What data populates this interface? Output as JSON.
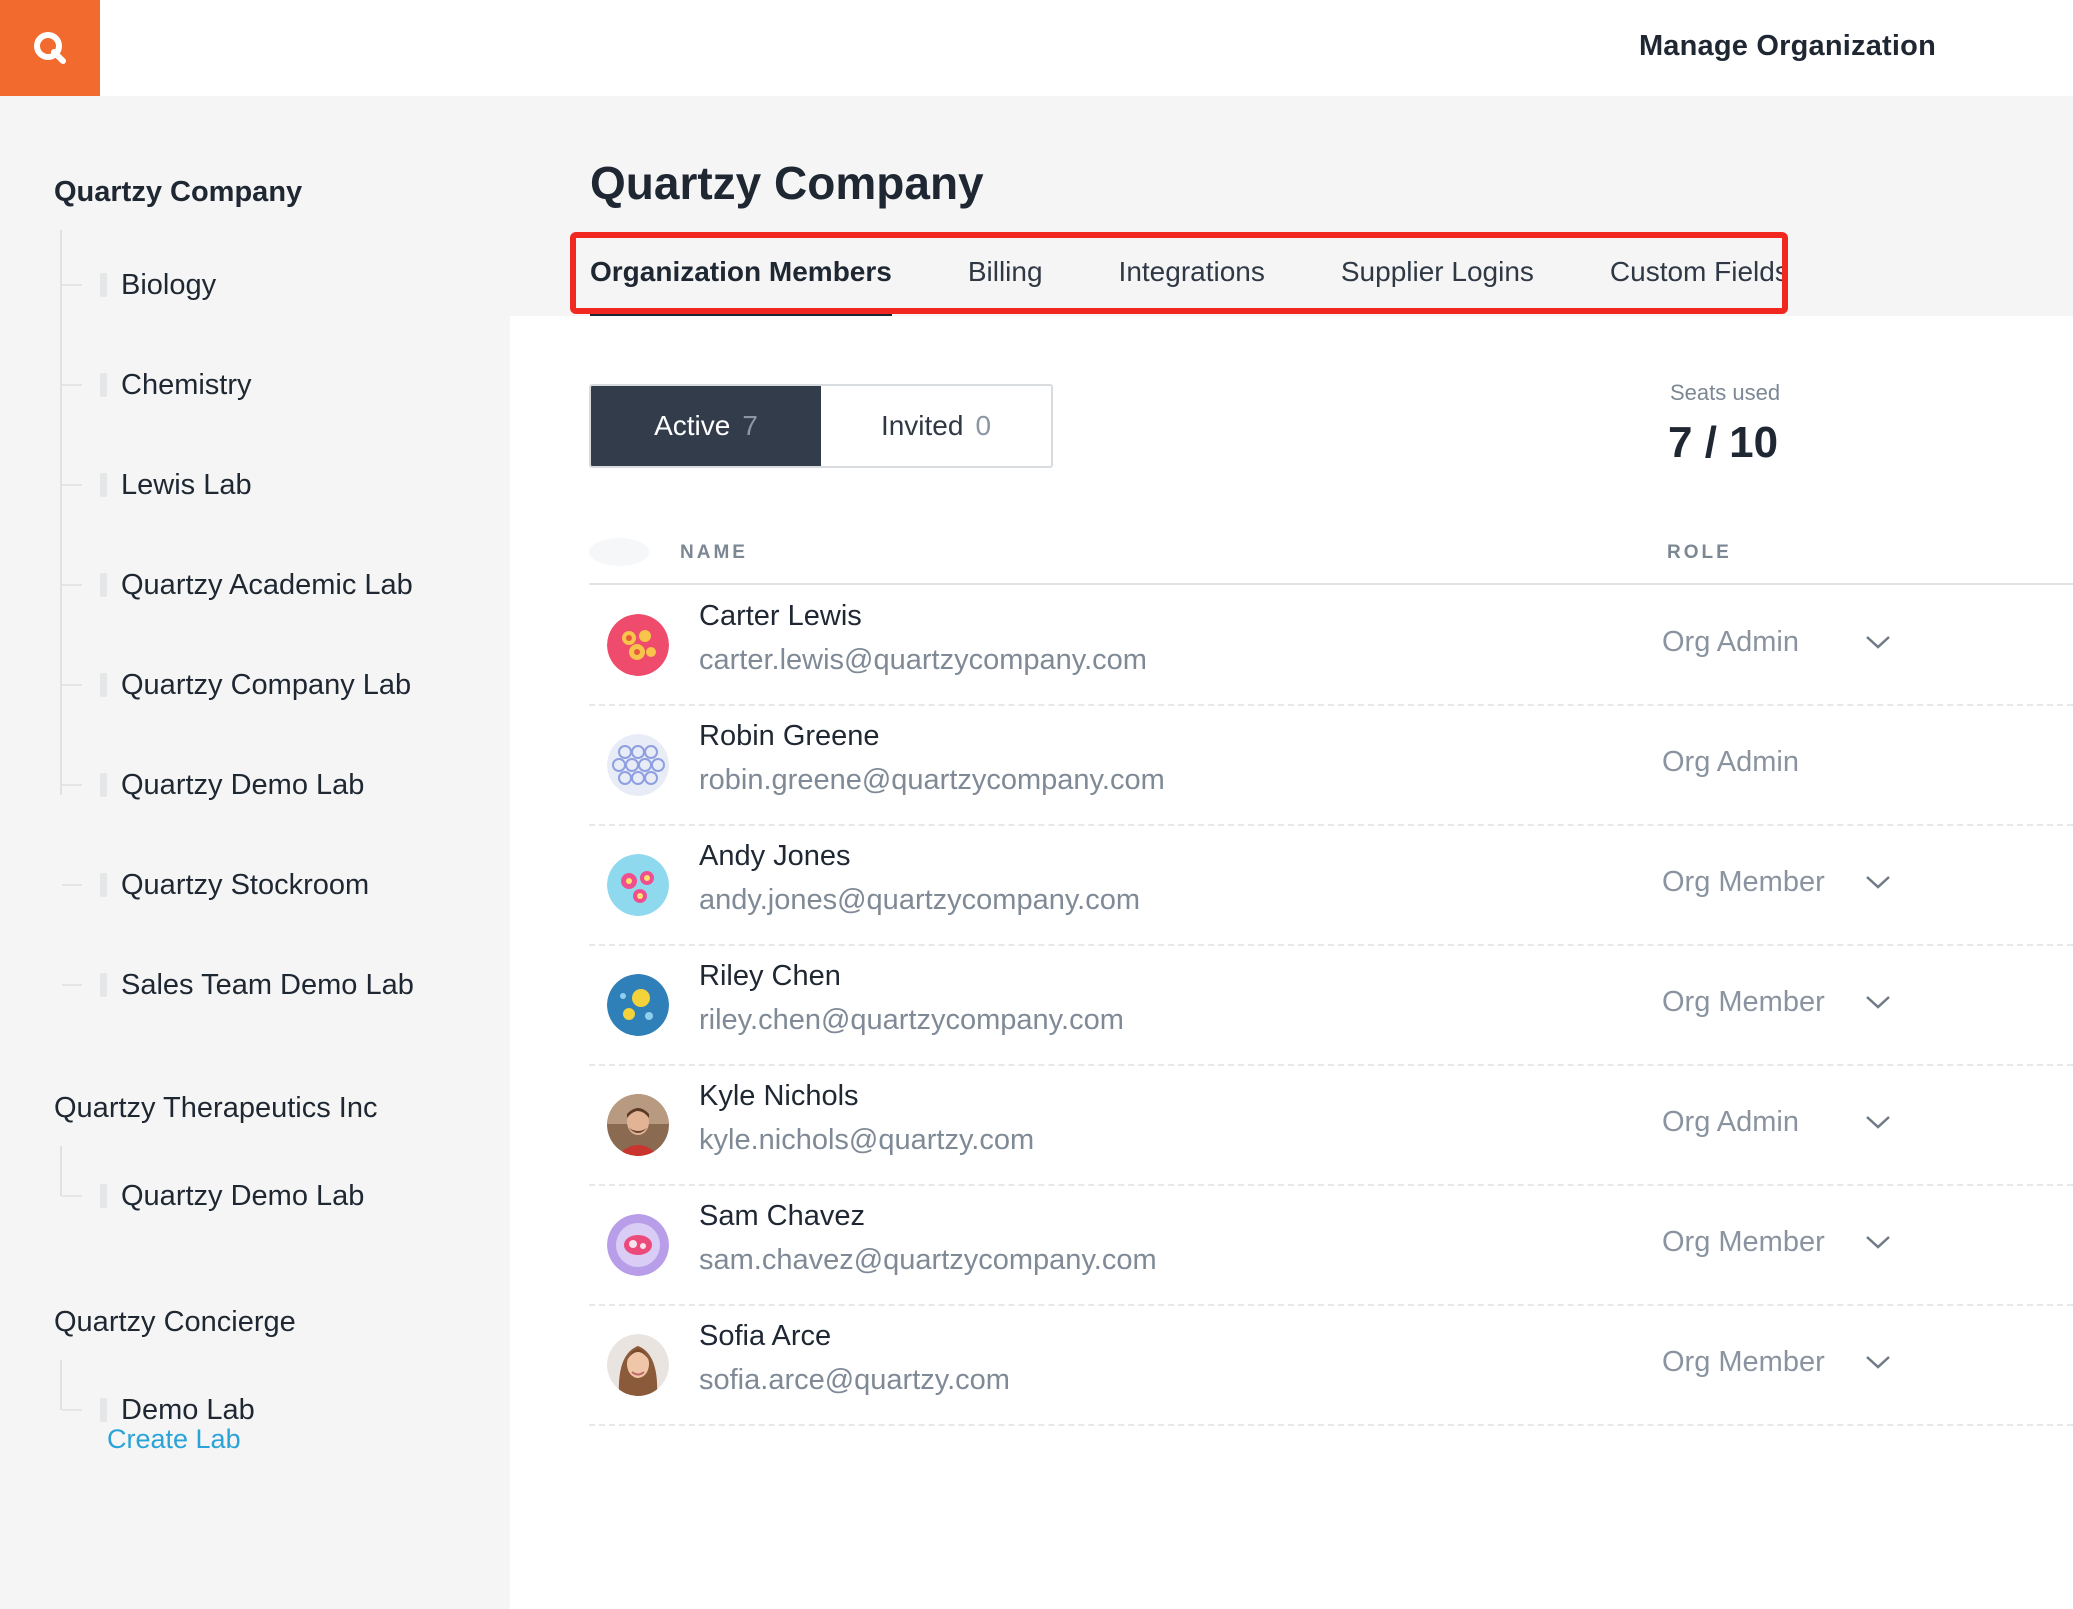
{
  "header": {
    "logo_icon": "quartzy-logo-icon",
    "logo_color": "#f26a2e",
    "manage_label": "Manage Organization"
  },
  "sidebar": {
    "orgs": [
      {
        "name": "Quartzy Company",
        "labs": [
          "Biology",
          "Chemistry",
          "Lewis Lab",
          "Quartzy Academic Lab",
          "Quartzy Company Lab",
          "Quartzy Demo Lab",
          "Quartzy Stockroom",
          "Sales Team Demo Lab"
        ]
      },
      {
        "name": "Quartzy Therapeutics Inc",
        "labs": [
          "Quartzy Demo Lab"
        ]
      },
      {
        "name": "Quartzy Concierge",
        "labs": [
          "Demo Lab"
        ]
      }
    ],
    "create_lab": "Create Lab",
    "link_color": "#2aa3d8"
  },
  "main": {
    "title": "Quartzy Company",
    "tabs": [
      {
        "label": "Organization Members",
        "active": true
      },
      {
        "label": "Billing"
      },
      {
        "label": "Integrations"
      },
      {
        "label": "Supplier Logins"
      },
      {
        "label": "Custom Fields"
      }
    ],
    "highlight_color": "#f0281f",
    "filter": {
      "active_label": "Active",
      "active_count": "7",
      "invited_label": "Invited",
      "invited_count": "0"
    },
    "seats": {
      "label": "Seats used",
      "value": "7 / 10"
    },
    "columns": {
      "name": "NAME",
      "role": "ROLE"
    },
    "members": [
      {
        "name": "Carter Lewis",
        "email": "carter.lewis@quartzycompany.com",
        "role": "Org Admin",
        "avatar": "cell-red-avatar",
        "dropdown": true
      },
      {
        "name": "Robin Greene",
        "email": "robin.greene@quartzycompany.com",
        "role": "Org Admin",
        "avatar": "cell-hex-avatar",
        "dropdown": false
      },
      {
        "name": "Andy Jones",
        "email": "andy.jones@quartzycompany.com",
        "role": "Org Member",
        "avatar": "cell-cyan-avatar",
        "dropdown": true
      },
      {
        "name": "Riley Chen",
        "email": "riley.chen@quartzycompany.com",
        "role": "Org Member",
        "avatar": "cell-blue-avatar",
        "dropdown": true
      },
      {
        "name": "Kyle Nichols",
        "email": "kyle.nichols@quartzy.com",
        "role": "Org Admin",
        "avatar": "photo-man-avatar",
        "dropdown": true
      },
      {
        "name": "Sam Chavez",
        "email": "sam.chavez@quartzycompany.com",
        "role": "Org Member",
        "avatar": "cell-purple-avatar",
        "dropdown": true
      },
      {
        "name": "Sofia Arce",
        "email": "sofia.arce@quartzy.com",
        "role": "Org Member",
        "avatar": "photo-woman-avatar",
        "dropdown": true
      }
    ]
  }
}
